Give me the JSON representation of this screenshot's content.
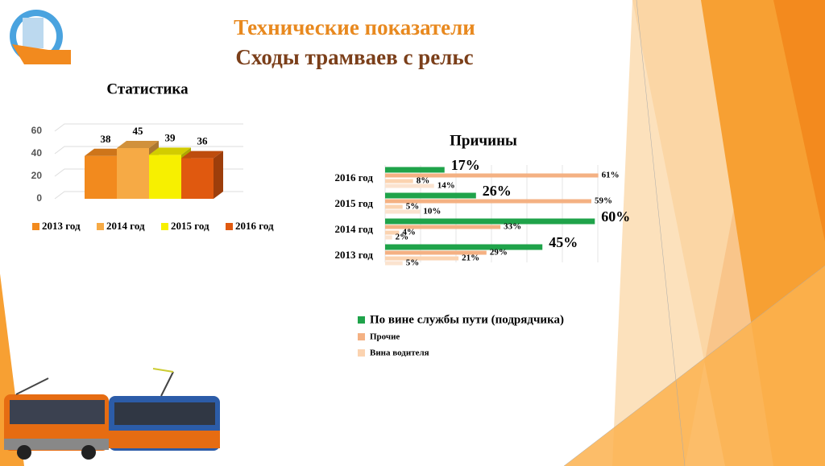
{
  "header": {
    "title": "Технические показатели",
    "subtitle": "Сходы трамваев с рельс"
  },
  "chart_data": [
    {
      "type": "bar3d",
      "title": "Статистика",
      "categories": [
        null
      ],
      "series": [
        {
          "name": "2013 год",
          "color": "#f28a1e",
          "values": [
            38
          ]
        },
        {
          "name": "2014 год",
          "color": "#f6aa45",
          "values": [
            45
          ]
        },
        {
          "name": "2015 год",
          "color": "#f7f000",
          "values": [
            39
          ]
        },
        {
          "name": "2016 год",
          "color": "#e0590f",
          "values": [
            36
          ]
        }
      ],
      "ylim": [
        0,
        60
      ],
      "yticks": [
        0,
        20,
        40,
        60
      ],
      "grid": true,
      "legend": "bottom"
    },
    {
      "type": "hbar",
      "title": "Причины",
      "categories": [
        "2013 год",
        "2014 год",
        "2015 год",
        "2016 год"
      ],
      "series": [
        {
          "name": "По вине службы пути (подрядчика)",
          "color": "#1fa34a",
          "values": [
            45,
            60,
            26,
            17
          ],
          "value_labels": [
            "45%",
            "60%",
            "26%",
            "17%"
          ]
        },
        {
          "name": "Прочие",
          "color": "#f4b183",
          "values": [
            29,
            33,
            59,
            61
          ],
          "value_labels": [
            "29%",
            "33%",
            "59%",
            "61%"
          ]
        },
        {
          "name": "Вина водителя",
          "color": "#fbd3b0",
          "values": [
            21,
            4,
            5,
            8
          ],
          "value_labels": [
            "21%",
            "4%",
            "5%",
            "8%"
          ]
        },
        {
          "color": "#fbe3cf",
          "values": [
            5,
            2,
            10,
            14
          ],
          "value_labels": [
            "5%",
            "2%",
            "10%",
            "14%"
          ]
        }
      ],
      "xlim": [
        0,
        65
      ],
      "legend": "bottom"
    }
  ]
}
